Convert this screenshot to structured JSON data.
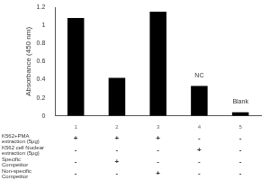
{
  "chart_data": {
    "type": "bar",
    "y_label": "Absorbance (450 nm)",
    "categories": [
      "1",
      "2",
      "3",
      "4",
      "5"
    ],
    "values": [
      1.08,
      0.42,
      1.15,
      0.33,
      0.04
    ],
    "color": "#000000",
    "ylim": [
      0,
      1.2
    ],
    "yticks": [
      0,
      0.2,
      0.4,
      0.6,
      0.8,
      1,
      1.2
    ],
    "grid": false,
    "annotations": [
      {
        "category": "4",
        "text": "NC"
      },
      {
        "category": "5",
        "text": "Blank"
      }
    ],
    "conditions": [
      {
        "label": [
          "K562+PMA",
          "extraction (5μg)"
        ],
        "marks": [
          "+",
          "+",
          "+",
          "-",
          "-"
        ]
      },
      {
        "label": [
          "K562 cell Nuclear",
          "extraction (5μg)"
        ],
        "marks": [
          "-",
          "-",
          "-",
          "+",
          "-"
        ]
      },
      {
        "label": [
          "Specific",
          "Competitor"
        ],
        "marks": [
          "-",
          "+",
          "-",
          "-",
          "-"
        ]
      },
      {
        "label": [
          "Non-specific",
          "Competitor"
        ],
        "marks": [
          "-",
          "-",
          "+",
          "-",
          "-"
        ]
      }
    ]
  }
}
